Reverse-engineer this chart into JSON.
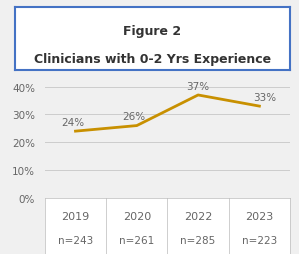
{
  "title_line1": "Figure 2",
  "title_line2": "Clinicians with 0-2 Yrs Experience",
  "x_labels": [
    "2019",
    "2020",
    "2022",
    "2023"
  ],
  "n_labels": [
    "n=243",
    "n=261",
    "n=285",
    "n=223"
  ],
  "x_values": [
    0,
    1,
    2,
    3
  ],
  "y_values": [
    0.24,
    0.26,
    0.37,
    0.33
  ],
  "y_labels_pct": [
    "24%",
    "26%",
    "37%",
    "33%"
  ],
  "line_color": "#C89000",
  "yticks": [
    0.0,
    0.1,
    0.2,
    0.3,
    0.4
  ],
  "ytick_labels": [
    "0%",
    "10%",
    "20%",
    "30%",
    "40%"
  ],
  "ylim": [
    0,
    0.44
  ],
  "background_color": "#f0f0f0",
  "plot_bg_color": "#f0f0f0",
  "title_box_edge_color": "#4472C4",
  "title_box_face_color": "#ffffff",
  "label_color": "#666666",
  "grid_color": "#cccccc",
  "table_bg_color": "#ffffff"
}
